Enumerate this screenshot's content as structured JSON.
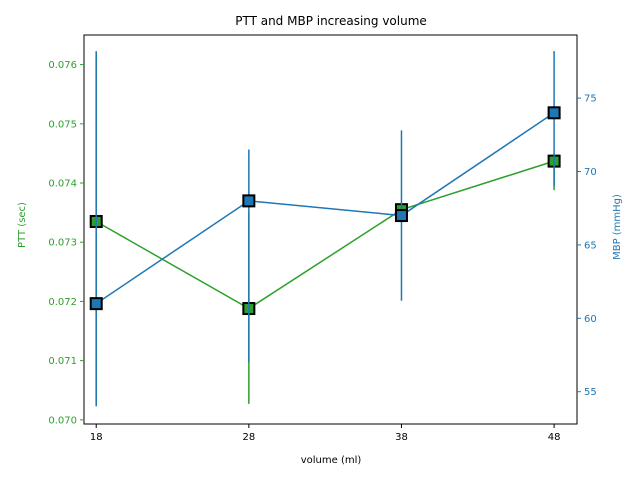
{
  "chart_data": {
    "type": "line",
    "title": "PTT and MBP increasing volume",
    "xlabel": "volume (ml)",
    "x": [
      18,
      28,
      38,
      48
    ],
    "x_ticks": [
      "18",
      "28",
      "38",
      "48"
    ],
    "xlim": [
      17.2,
      49.5
    ],
    "axes": {
      "left": {
        "label": "PTT (sec)",
        "color": "#2ca02c",
        "ylim": [
          0.06993,
          0.0765
        ],
        "ticks": [
          "0.070",
          "0.071",
          "0.072",
          "0.073",
          "0.074",
          "0.075",
          "0.076"
        ],
        "tick_values": [
          0.07,
          0.071,
          0.072,
          0.073,
          0.074,
          0.075,
          0.076
        ]
      },
      "right": {
        "label": "MBP (mmHg)",
        "color": "#1f77b4",
        "ylim": [
          52.8,
          79.3
        ],
        "ticks": [
          "55",
          "60",
          "65",
          "70",
          "75"
        ],
        "tick_values": [
          55,
          60,
          65,
          70,
          75
        ]
      }
    },
    "series": [
      {
        "axis": "left",
        "color": "#2ca02c",
        "values": [
          0.07335,
          0.07188,
          0.07355,
          0.07437
        ],
        "err_low": [
          0.07027,
          0.07027,
          0.07335,
          0.07388
        ],
        "err_high": [
          0.0762,
          0.0735,
          0.07365,
          0.07445
        ],
        "marker": "square"
      },
      {
        "axis": "right",
        "color": "#1f77b4",
        "values": [
          61,
          68,
          67,
          74
        ],
        "err_low": [
          54,
          57,
          61.2,
          69
        ],
        "err_high": [
          78.2,
          71.5,
          72.8,
          78.2
        ],
        "marker": "square"
      }
    ],
    "grid": false,
    "legend": "none"
  }
}
